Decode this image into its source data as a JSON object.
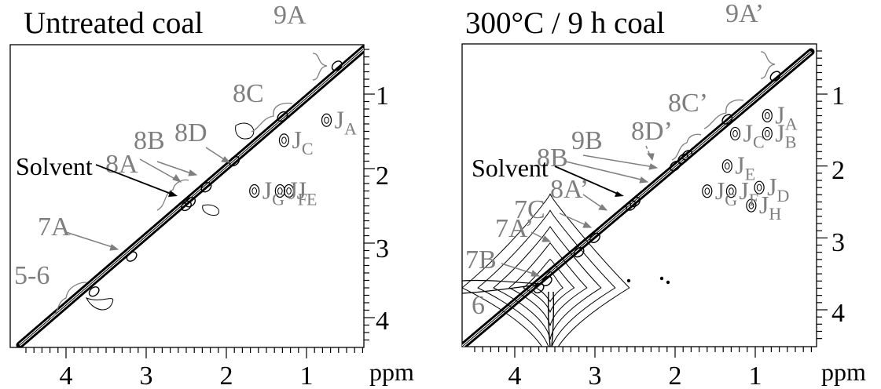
{
  "colors": {
    "ink": "#000000",
    "annotation": "#7f7f7f",
    "background": "#ffffff"
  },
  "chart_data": [
    {
      "type": "scatter",
      "title": "Untreated coal",
      "unit_label": "ppm",
      "x_ticks": [
        4,
        3,
        2,
        1
      ],
      "y_ticks": [
        1,
        2,
        3,
        4
      ],
      "xlim": [
        4.55,
        0.15
      ],
      "ylim": [
        0.15,
        4.45
      ],
      "diagonal_peaks": [
        {
          "label": "9A",
          "shift": 0.62
        },
        {
          "label": "8C",
          "shift": 1.3
        },
        {
          "label": "8D",
          "shift": 1.9
        },
        {
          "label": "8B",
          "shift": 2.25
        },
        {
          "label": "8A",
          "shift": 2.45
        },
        {
          "label": "Solvent",
          "shift": 2.5
        },
        {
          "label": "7A",
          "shift": 3.18
        },
        {
          "label": "5-6",
          "shift": 3.65
        }
      ],
      "cross_peaks": [
        {
          "label": "JA",
          "main": "J",
          "sub": "A",
          "x": 0.75,
          "y": 1.35
        },
        {
          "label": "JC",
          "main": "J",
          "sub": "C",
          "x": 1.28,
          "y": 1.62
        },
        {
          "label": "JE",
          "main": "J",
          "sub": "E",
          "x": 1.22,
          "y": 2.3
        },
        {
          "label": "JF",
          "main": "J",
          "sub": "F",
          "x": 1.33,
          "y": 2.3
        },
        {
          "label": "JG",
          "main": "J",
          "sub": "G",
          "x": 1.65,
          "y": 2.3
        }
      ]
    },
    {
      "type": "scatter",
      "title": "300°C / 9 h coal",
      "unit_label": "ppm",
      "x_ticks": [
        4,
        3,
        2,
        1
      ],
      "y_ticks": [
        1,
        2,
        3,
        4
      ],
      "xlim": [
        4.6,
        0.2
      ],
      "ylim": [
        0.15,
        4.45
      ],
      "diagonal_peaks": [
        {
          "label": "9A’",
          "shift": 0.75
        },
        {
          "label": "8C’",
          "shift": 1.35
        },
        {
          "label": "8D’",
          "shift": 1.85
        },
        {
          "label": "9B",
          "shift": 1.9
        },
        {
          "label": "8B",
          "shift": 2.0
        },
        {
          "label": "Solvent",
          "shift": 2.5
        },
        {
          "label": "8A’",
          "shift": 2.55
        },
        {
          "label": "7C",
          "shift": 3.0
        },
        {
          "label": "7A’",
          "shift": 3.2
        },
        {
          "label": "7B",
          "shift": 3.6
        },
        {
          "label": "6",
          "shift": 3.7
        }
      ],
      "cross_peaks": [
        {
          "label": "JA",
          "main": "J",
          "sub": "A",
          "x": 0.85,
          "y": 1.3
        },
        {
          "label": "JB",
          "main": "J",
          "sub": "B",
          "x": 0.85,
          "y": 1.55
        },
        {
          "label": "JC",
          "main": "J",
          "sub": "C",
          "x": 1.25,
          "y": 1.55
        },
        {
          "label": "JE",
          "main": "J",
          "sub": "E",
          "x": 1.35,
          "y": 2.0
        },
        {
          "label": "JD",
          "main": "J",
          "sub": "D",
          "x": 0.95,
          "y": 2.3
        },
        {
          "label": "JF",
          "main": "J",
          "sub": "F",
          "x": 1.3,
          "y": 2.35
        },
        {
          "label": "JG",
          "main": "J",
          "sub": "G",
          "x": 1.6,
          "y": 2.35
        },
        {
          "label": "JH",
          "main": "J",
          "sub": "H",
          "x": 1.05,
          "y": 2.55
        }
      ]
    }
  ]
}
